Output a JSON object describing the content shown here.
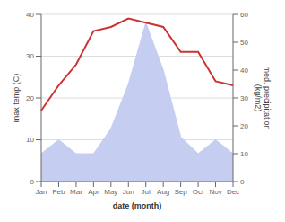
{
  "chart_data": {
    "type": "line",
    "xlabel": "date (month)",
    "ylabel": "max temp (C)",
    "y2label": "med. precipitation\n(kg/m2)",
    "categories": [
      "Jan",
      "Feb",
      "Mar",
      "Apr",
      "May",
      "Jun",
      "Jul",
      "Aug",
      "Sep",
      "Oct",
      "Nov",
      "Dec"
    ],
    "series": [
      {
        "type": "area",
        "axis": "y2",
        "color": "#c5cef0",
        "values": [
          10,
          15,
          10,
          10,
          19,
          35,
          57,
          40,
          16,
          10,
          15,
          10
        ]
      },
      {
        "type": "line",
        "color": "#cc3333",
        "values": [
          17,
          23,
          28,
          36,
          37,
          39,
          38,
          37,
          31,
          31,
          24,
          23
        ]
      }
    ],
    "ylim": [
      0,
      40
    ],
    "yticks": [
      0,
      10,
      20,
      30,
      40
    ],
    "y2lim": [
      0,
      60
    ],
    "y2ticks": [
      0,
      10,
      20,
      30,
      40,
      50,
      60
    ],
    "grid": true
  }
}
